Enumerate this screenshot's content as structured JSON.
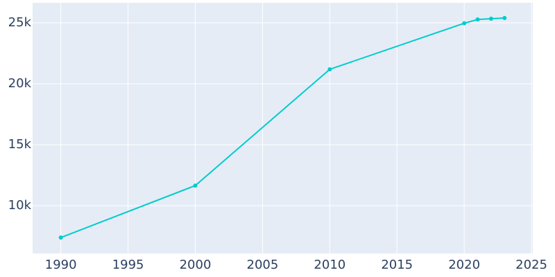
{
  "chart_data": {
    "type": "line",
    "x": [
      1990,
      2000,
      2010,
      2020,
      2021,
      2022,
      2023
    ],
    "series": [
      {
        "color": "#00cccc",
        "values": [
          7386,
          11650,
          21190,
          24970,
          25280,
          25340,
          25400
        ]
      }
    ],
    "xlim": [
      1987.9,
      2025.1
    ],
    "xticks": [
      1990,
      1995,
      2000,
      2005,
      2010,
      2015,
      2020,
      2025
    ],
    "ylim": [
      6080,
      26650
    ],
    "yticks": [
      {
        "value": 10000,
        "label": "10k"
      },
      {
        "value": 15000,
        "label": "15k"
      },
      {
        "value": 20000,
        "label": "20k"
      },
      {
        "value": 25000,
        "label": "25k"
      }
    ],
    "grid": true
  }
}
